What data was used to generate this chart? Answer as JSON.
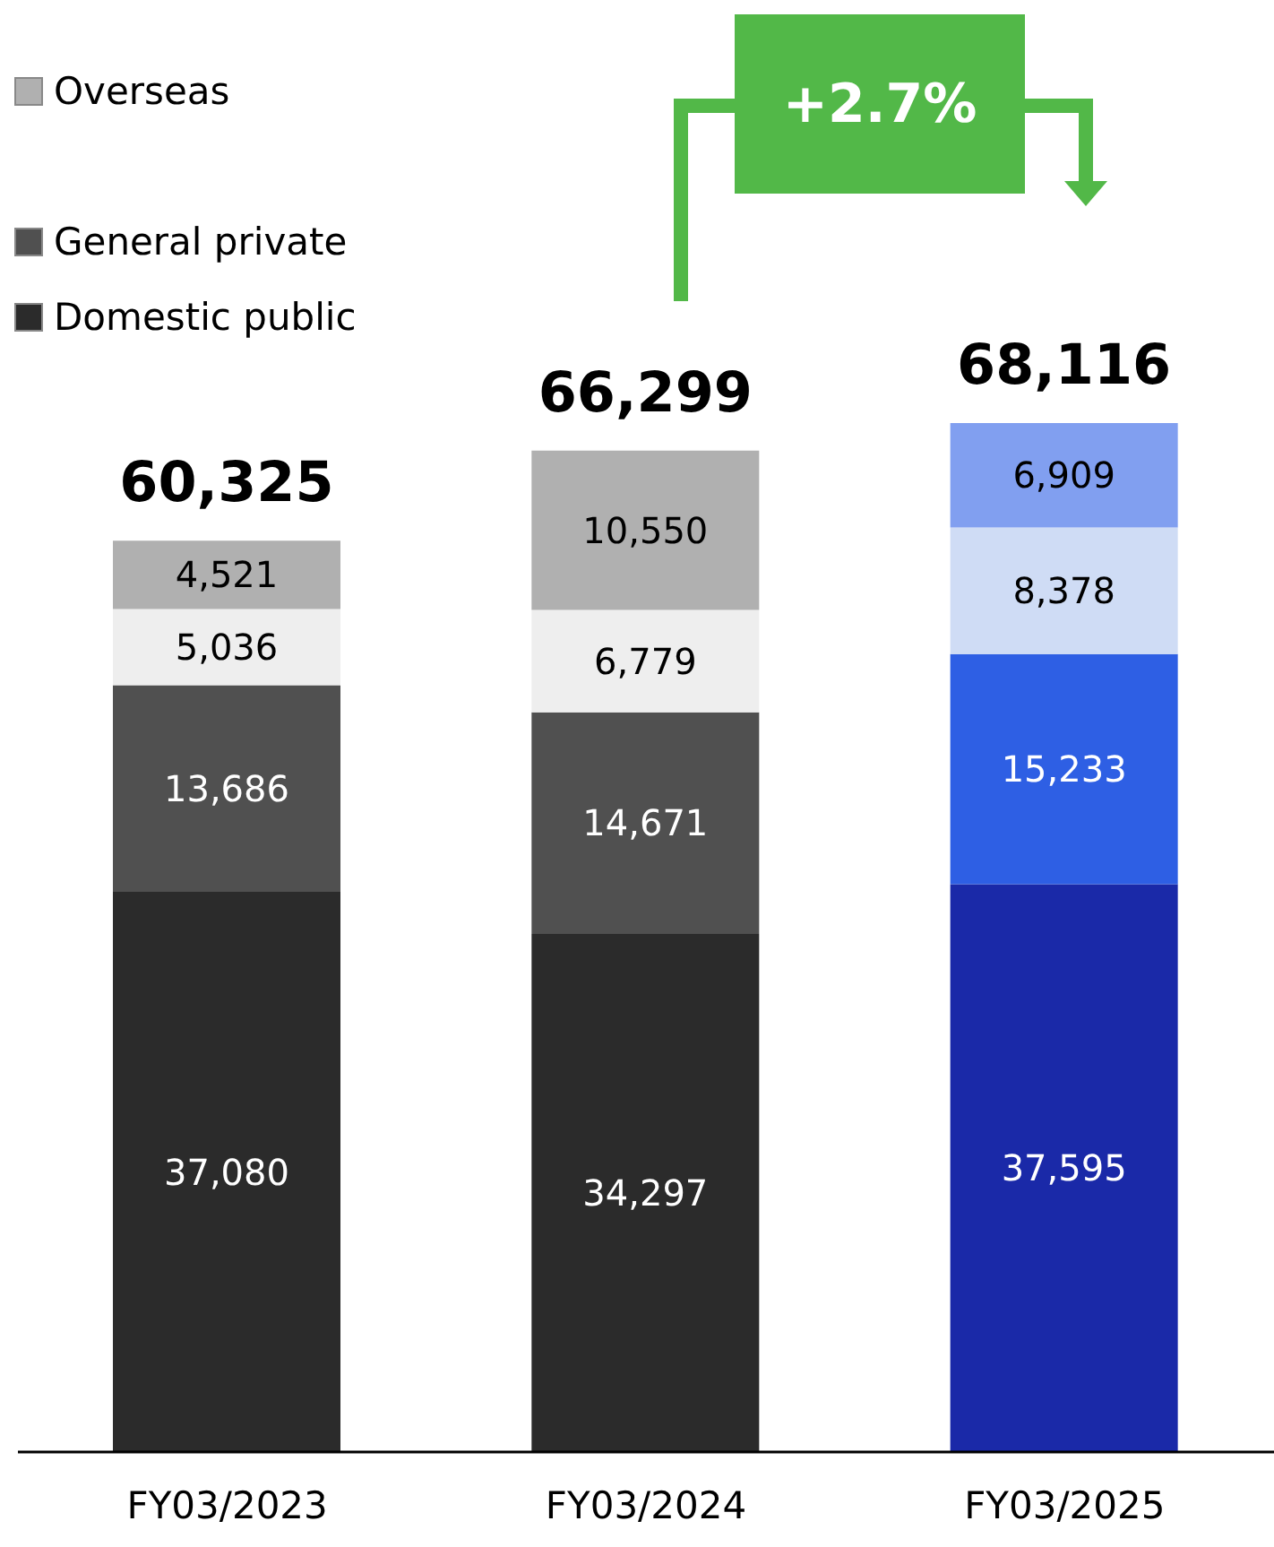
{
  "chart_data": {
    "type": "bar",
    "stacked": true,
    "categories": [
      "FY03/2023",
      "FY03/2024",
      "FY03/2025"
    ],
    "series": [
      {
        "name": "Domestic public",
        "colors": [
          "#2b2b2b",
          "#2b2b2b",
          "#1a29a8"
        ],
        "values": [
          37080,
          34297,
          37595
        ],
        "value_labels": [
          "37,080",
          "34,297",
          "37,595"
        ]
      },
      {
        "name": "General private",
        "colors": [
          "#505050",
          "#505050",
          "#2e5fe4"
        ],
        "values": [
          13686,
          14671,
          15233
        ],
        "value_labels": [
          "13,686",
          "14,671",
          "15,233"
        ]
      },
      {
        "colors": [
          "#eeeeee",
          "#eeeeee",
          "#cfdcf5"
        ],
        "values": [
          5036,
          6779,
          8378
        ],
        "value_labels": [
          "5,036",
          "6,779",
          "8,378"
        ]
      },
      {
        "name": "Overseas",
        "colors": [
          "#b0b0b0",
          "#b0b0b0",
          "#819ff0"
        ],
        "values": [
          4521,
          10550,
          6909
        ],
        "value_labels": [
          "4,521",
          "10,550",
          "6,909"
        ]
      }
    ],
    "totals": [
      "60,325",
      "66,299",
      "68,116"
    ],
    "legend": "top left",
    "annotations": [
      "+2.7%"
    ]
  }
}
